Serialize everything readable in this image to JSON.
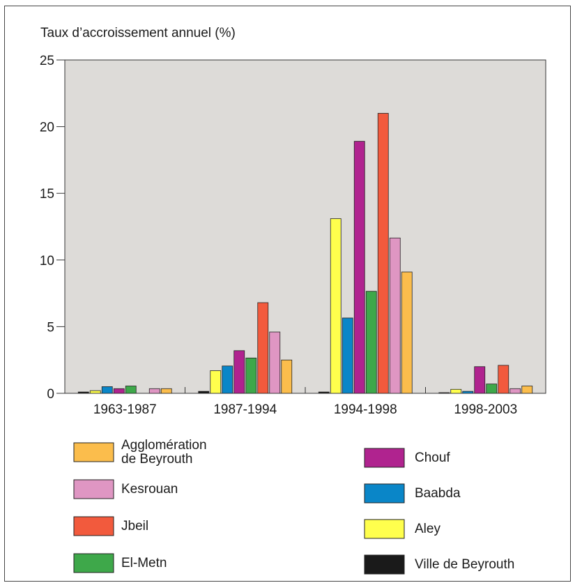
{
  "chart_data": {
    "type": "bar",
    "ylabel": "Taux d’accroissement annuel (%)",
    "ylim": [
      0,
      25
    ],
    "yticks": [
      0,
      5,
      10,
      15,
      20,
      25
    ],
    "grid": false,
    "background_color": "#dddbd8",
    "legend_position": "bottom",
    "categories": [
      "1963-1987",
      "1987-1994",
      "1994-1998",
      "1998-2003"
    ],
    "series": [
      {
        "name": "Ville de Beyrouth",
        "color": "#1a1a1a",
        "values": [
          0.1,
          0.15,
          0.1,
          0.05
        ]
      },
      {
        "name": "Aley",
        "color": "#ffff4d",
        "values": [
          0.2,
          1.7,
          13.1,
          0.3
        ]
      },
      {
        "name": "Baabda",
        "color": "#0a86c8",
        "values": [
          0.5,
          2.05,
          5.65,
          0.15
        ]
      },
      {
        "name": "Chouf",
        "color": "#b0238f",
        "values": [
          0.35,
          3.2,
          18.9,
          2.0
        ]
      },
      {
        "name": "El-Metn",
        "color": "#3ea84a",
        "values": [
          0.55,
          2.65,
          7.65,
          0.7
        ]
      },
      {
        "name": "Jbeil",
        "color": "#f25a3d",
        "values": [
          0,
          6.8,
          21.0,
          2.1
        ]
      },
      {
        "name": "Kesrouan",
        "color": "#df96c3",
        "values": [
          0.35,
          4.6,
          11.65,
          0.35
        ]
      },
      {
        "name": "Agglomération de Beyrouth",
        "color": "#fbbd4c",
        "values": [
          0.35,
          2.5,
          9.1,
          0.55
        ]
      }
    ]
  },
  "legend_left": [
    {
      "label_lines": [
        "Agglomération",
        "de Beyrouth"
      ],
      "color": "#fbbd4c"
    },
    {
      "label_lines": [
        "Kesrouan"
      ],
      "color": "#df96c3"
    },
    {
      "label_lines": [
        "Jbeil"
      ],
      "color": "#f25a3d"
    },
    {
      "label_lines": [
        "El-Metn"
      ],
      "color": "#3ea84a"
    }
  ],
  "legend_right": [
    {
      "label_lines": [
        "Chouf"
      ],
      "color": "#b0238f"
    },
    {
      "label_lines": [
        "Baabda"
      ],
      "color": "#0a86c8"
    },
    {
      "label_lines": [
        "Aley"
      ],
      "color": "#ffff4d"
    },
    {
      "label_lines": [
        "Ville de Beyrouth"
      ],
      "color": "#1a1a1a"
    }
  ]
}
